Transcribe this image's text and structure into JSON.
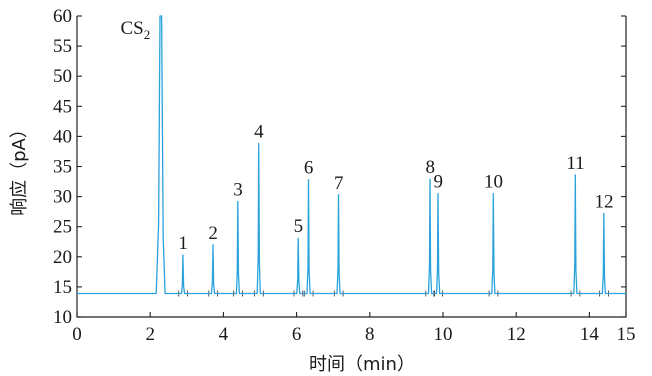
{
  "chart_data": {
    "type": "line",
    "title": "",
    "xlabel": "时间（min）",
    "ylabel": "响应（pA）",
    "xlim": [
      0,
      15
    ],
    "ylim": [
      10,
      60
    ],
    "x_ticks": [
      "0",
      "2",
      "4",
      "6",
      "8",
      "10",
      "12",
      "14",
      "15"
    ],
    "y_ticks": [
      "10",
      "15",
      "20",
      "25",
      "30",
      "35",
      "40",
      "45",
      "50",
      "55",
      "60"
    ],
    "grid": false,
    "baseline": 13.9,
    "line_color": "#2aa3dc",
    "solvent_peak": {
      "label": "CS",
      "label_subscript": "2",
      "rt": 2.28,
      "height": 60,
      "clipped": true
    },
    "peaks": [
      {
        "label": "1",
        "rt": 2.9,
        "height": 20.3
      },
      {
        "label": "2",
        "rt": 3.72,
        "height": 22.0
      },
      {
        "label": "3",
        "rt": 4.4,
        "height": 29.2
      },
      {
        "label": "4",
        "rt": 4.97,
        "height": 38.8
      },
      {
        "label": "5",
        "rt": 6.05,
        "height": 23.1
      },
      {
        "label": "6",
        "rt": 6.33,
        "height": 32.8
      },
      {
        "label": "7",
        "rt": 7.15,
        "height": 30.3
      },
      {
        "label": "8",
        "rt": 9.65,
        "height": 32.9
      },
      {
        "label": "9",
        "rt": 9.87,
        "height": 30.5
      },
      {
        "label": "10",
        "rt": 11.38,
        "height": 30.5
      },
      {
        "label": "11",
        "rt": 13.62,
        "height": 33.6
      },
      {
        "label": "12",
        "rt": 14.4,
        "height": 27.2
      }
    ]
  }
}
